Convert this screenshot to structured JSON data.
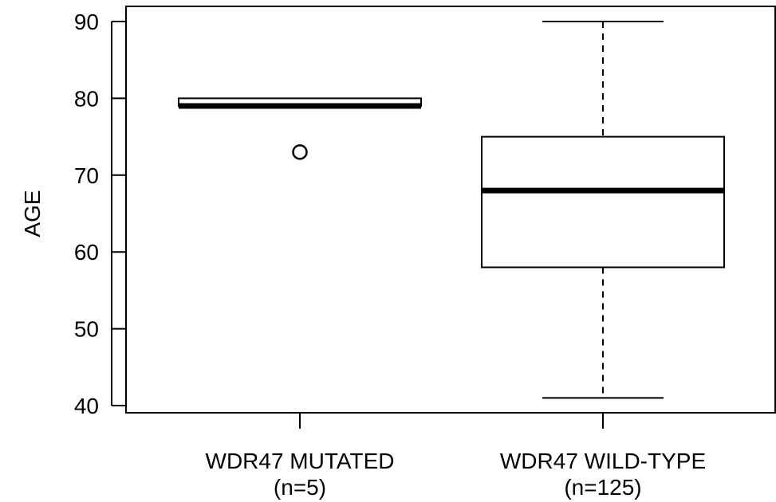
{
  "chart_data": {
    "type": "boxplot",
    "ylabel": "AGE",
    "ylim": [
      39,
      92
    ],
    "yticks": [
      40,
      50,
      60,
      70,
      80,
      90
    ],
    "categories": [
      {
        "label": "WDR47 MUTATED",
        "sublabel": "(n=5)"
      },
      {
        "label": "WDR47 WILD-TYPE",
        "sublabel": "(n=125)"
      }
    ],
    "boxes": [
      {
        "whisker_low": 79,
        "q1": 79,
        "median": 79,
        "q3": 80,
        "whisker_high": 80,
        "outliers": [
          73
        ]
      },
      {
        "whisker_low": 41,
        "q1": 58,
        "median": 68,
        "q3": 75,
        "whisker_high": 90,
        "outliers": []
      }
    ]
  }
}
